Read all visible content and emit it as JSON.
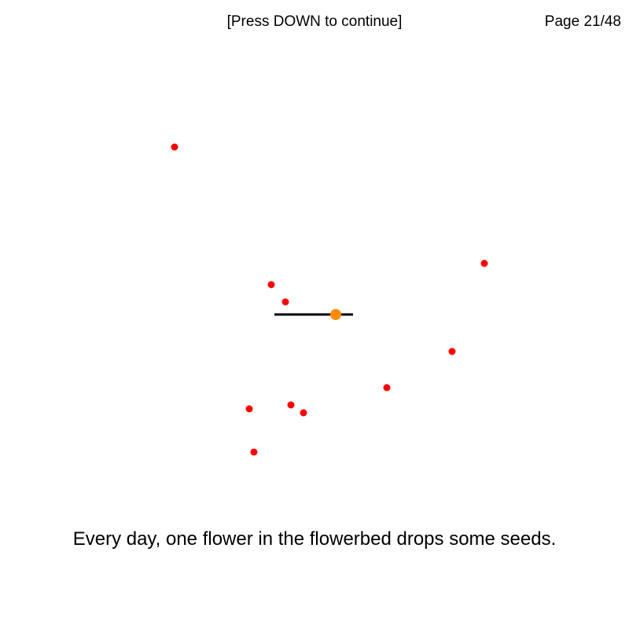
{
  "header": {
    "hint": "[Press DOWN to continue]",
    "page": "Page 21/48"
  },
  "caption": "Every day, one flower in the flowerbed drops some seeds.",
  "scene": {
    "flowerbed_color": "#000000",
    "flower_color": "#ff8c00",
    "seed_color": "#ff0000",
    "flower_icon": "orange-circle",
    "seed_icon": "red-dot",
    "seed_count": 10
  }
}
